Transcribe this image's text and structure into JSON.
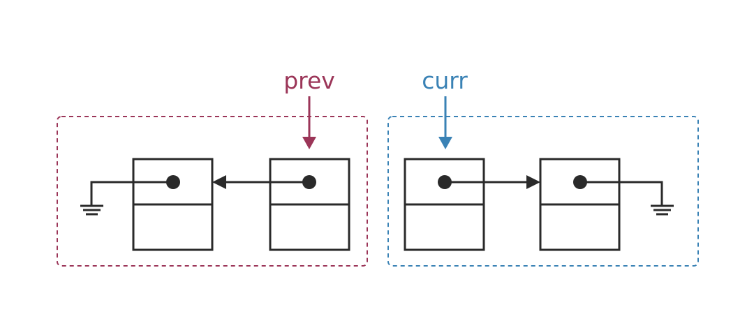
{
  "labels": {
    "prev": "prev",
    "curr": "curr"
  },
  "colors": {
    "prev": "#9b3558",
    "curr": "#3a82b5",
    "node_stroke": "#2a2a2a",
    "background": "#ffffff"
  },
  "groups": [
    {
      "name": "reversed-part",
      "pointer": "prev",
      "border_color": "#9b3558"
    },
    {
      "name": "remaining-part",
      "pointer": "curr",
      "border_color": "#3a82b5"
    }
  ],
  "nodes": [
    {
      "id": "node-1",
      "next": "null-left"
    },
    {
      "id": "node-2",
      "next": "node-1"
    },
    {
      "id": "node-3",
      "next": "node-4"
    },
    {
      "id": "node-4",
      "next": "null-right"
    }
  ]
}
